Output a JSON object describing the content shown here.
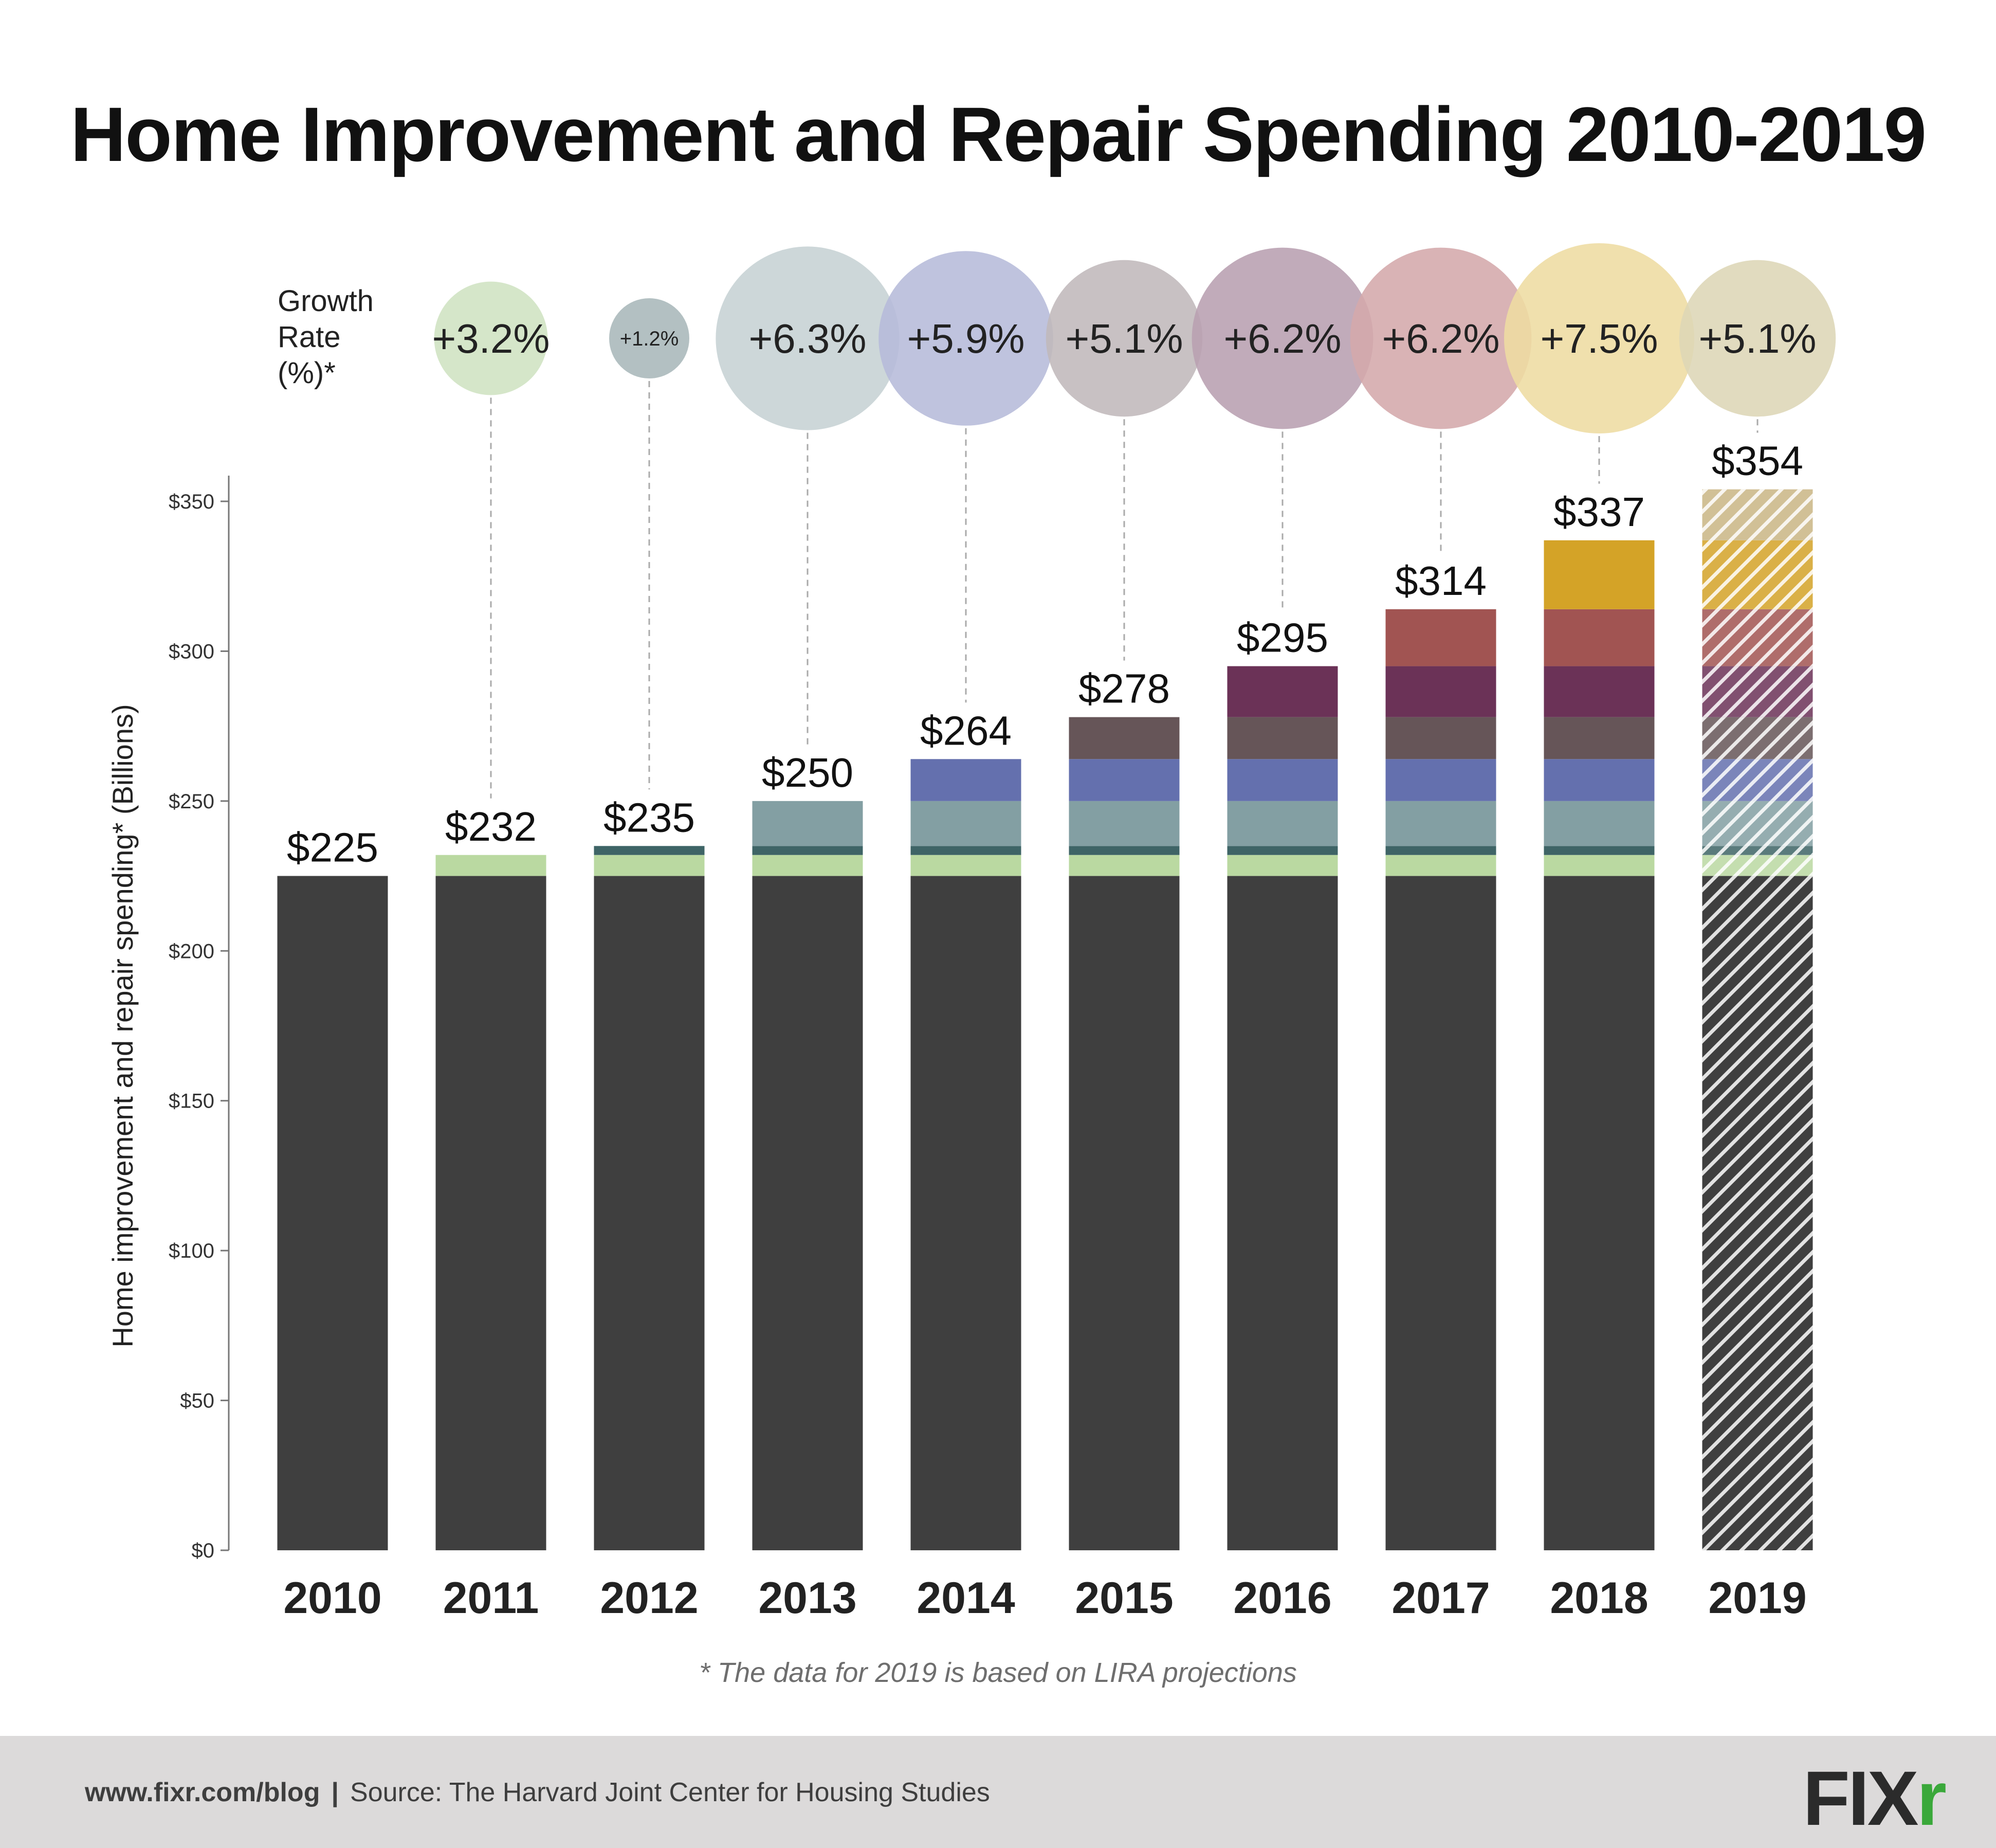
{
  "title": "Home Improvement and Repair Spending 2010-2019",
  "footnote": "* The data for 2019 is based on LIRA projections",
  "footer": {
    "url": "www.fixr.com/blog",
    "separator": "|",
    "source": "Source: The Harvard Joint Center for Housing Studies",
    "logo_main": "FIX",
    "logo_accent": "r"
  },
  "colors": {
    "base": "#3f3f3f",
    "projected_hatch": "#ffffff",
    "logo_accent": "#3aa83a",
    "segments": [
      "#3f3f3f",
      "#bad9a1",
      "#3e6466",
      "#839fa3",
      "#6470ae",
      "#665558",
      "#6b3257",
      "#a15452",
      "#d4a327",
      "#c9b684"
    ],
    "bubbles": [
      "#cfe3c2",
      "#a9b7ba",
      "#c6d2d4",
      "#b6bbd9",
      "#c0b8bb",
      "#b89fb1",
      "#d4a9ab",
      "#eedca2",
      "#ddd6b6"
    ]
  },
  "chart_data": {
    "type": "bar",
    "stacked": true,
    "title": "Home Improvement and Repair Spending 2010-2019",
    "xlabel": "",
    "ylabel": "Home improvement and repair spending* (Billions)",
    "ylim": [
      0,
      350
    ],
    "y_ticks": [
      0,
      50,
      100,
      150,
      200,
      250,
      300,
      350
    ],
    "y_tick_labels": [
      "$0",
      "$50",
      "$100",
      "$150",
      "$200",
      "$250",
      "$300",
      "$350"
    ],
    "categories": [
      "2010",
      "2011",
      "2012",
      "2013",
      "2014",
      "2015",
      "2016",
      "2017",
      "2018",
      "2019"
    ],
    "totals": [
      225,
      232,
      235,
      250,
      264,
      278,
      295,
      314,
      337,
      354
    ],
    "total_labels": [
      "$225",
      "$232",
      "$235",
      "$250",
      "$264",
      "$278",
      "$295",
      "$314",
      "$337",
      "$354"
    ],
    "projected": [
      "2019"
    ],
    "growth_rate_label": [
      "Growth",
      "Rate",
      "(%)*"
    ],
    "growth_rates": [
      {
        "year": "2011",
        "value": 3.2,
        "label": "+3.2%"
      },
      {
        "year": "2012",
        "value": 1.2,
        "label": "+1.2%"
      },
      {
        "year": "2013",
        "value": 6.3,
        "label": "+6.3%"
      },
      {
        "year": "2014",
        "value": 5.9,
        "label": "+5.9%"
      },
      {
        "year": "2015",
        "value": 5.1,
        "label": "+5.1%"
      },
      {
        "year": "2016",
        "value": 6.2,
        "label": "+6.2%"
      },
      {
        "year": "2017",
        "value": 6.2,
        "label": "+6.2%"
      },
      {
        "year": "2018",
        "value": 7.5,
        "label": "+7.5%"
      },
      {
        "year": "2019",
        "value": 5.1,
        "label": "+5.1%"
      }
    ],
    "grid": false,
    "legend": "none"
  }
}
